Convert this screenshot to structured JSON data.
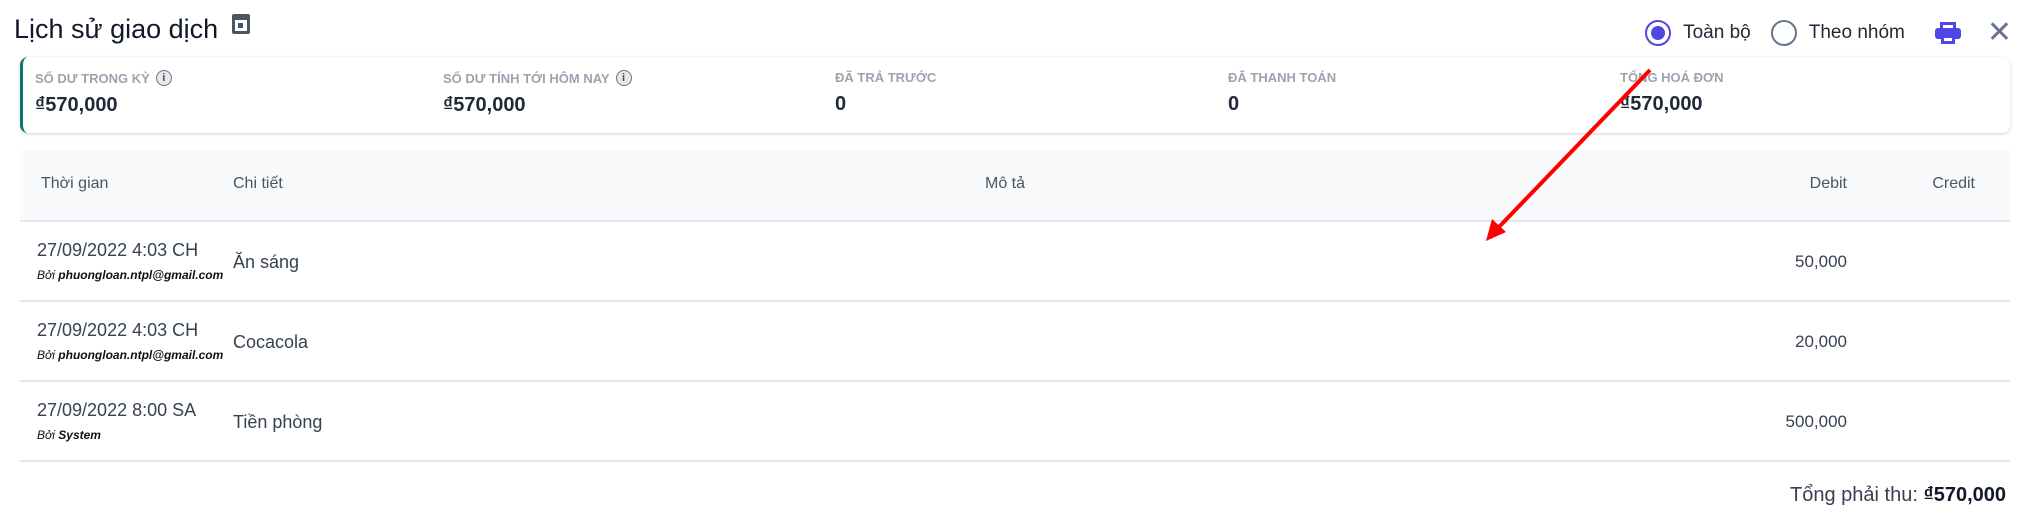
{
  "header": {
    "title": "Lịch sử giao dịch",
    "calendar_icon": "calendar-icon",
    "view_options": [
      {
        "label": "Toàn bộ",
        "selected": true
      },
      {
        "label": "Theo nhóm",
        "selected": false
      }
    ],
    "print_icon": "printer-icon",
    "close_icon": "close-icon",
    "accent": "#4f46e5"
  },
  "summary": [
    {
      "label": "SỐ DƯ TRONG KỲ",
      "value": "₫570,000",
      "info": true
    },
    {
      "label": "SỐ DƯ TÍNH TỚI HÔM NAY",
      "value": "₫570,000",
      "info": true
    },
    {
      "label": "ĐÃ TRẢ TRƯỚC",
      "value": "0"
    },
    {
      "label": "ĐÃ THANH TOÁN",
      "value": "0"
    },
    {
      "label": "TỔNG HOÁ ĐƠN",
      "value": "₫570,000"
    }
  ],
  "table": {
    "columns": [
      "Thời gian",
      "Chi tiết",
      "Mô tả",
      "Debit",
      "Credit"
    ],
    "rows": [
      {
        "time": "27/09/2022 4:03 CH",
        "by_prefix": "Bởi",
        "by": "phuongloan.ntpl@gmail.com",
        "detail": "Ăn sáng",
        "description": "",
        "debit": "50,000",
        "credit": ""
      },
      {
        "time": "27/09/2022 4:03 CH",
        "by_prefix": "Bởi",
        "by": "phuongloan.ntpl@gmail.com",
        "detail": "Cocacola",
        "description": "",
        "debit": "20,000",
        "credit": ""
      },
      {
        "time": "27/09/2022 8:00 SA",
        "by_prefix": "Bởi",
        "by": "System",
        "detail": "Tiền phòng",
        "description": "",
        "debit": "500,000",
        "credit": ""
      }
    ]
  },
  "footer": {
    "total_label": "Tổng phải thu:",
    "total_value": "₫570,000"
  }
}
